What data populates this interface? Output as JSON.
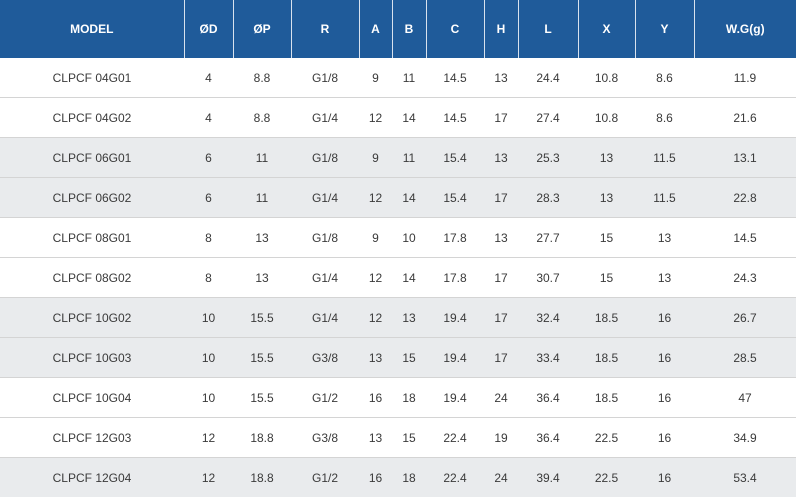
{
  "table": {
    "headers": [
      "MODEL",
      "ØD",
      "ØP",
      "R",
      "A",
      "B",
      "C",
      "H",
      "L",
      "X",
      "Y",
      "W.G(g)"
    ],
    "rows": [
      [
        "CLPCF 04G01",
        "4",
        "8.8",
        "G1/8",
        "9",
        "11",
        "14.5",
        "13",
        "24.4",
        "10.8",
        "8.6",
        "11.9"
      ],
      [
        "CLPCF 04G02",
        "4",
        "8.8",
        "G1/4",
        "12",
        "14",
        "14.5",
        "17",
        "27.4",
        "10.8",
        "8.6",
        "21.6"
      ],
      [
        "CLPCF 06G01",
        "6",
        "11",
        "G1/8",
        "9",
        "11",
        "15.4",
        "13",
        "25.3",
        "13",
        "11.5",
        "13.1"
      ],
      [
        "CLPCF 06G02",
        "6",
        "11",
        "G1/4",
        "12",
        "14",
        "15.4",
        "17",
        "28.3",
        "13",
        "11.5",
        "22.8"
      ],
      [
        "CLPCF 08G01",
        "8",
        "13",
        "G1/8",
        "9",
        "10",
        "17.8",
        "13",
        "27.7",
        "15",
        "13",
        "14.5"
      ],
      [
        "CLPCF 08G02",
        "8",
        "13",
        "G1/4",
        "12",
        "14",
        "17.8",
        "17",
        "30.7",
        "15",
        "13",
        "24.3"
      ],
      [
        "CLPCF 10G02",
        "10",
        "15.5",
        "G1/4",
        "12",
        "13",
        "19.4",
        "17",
        "32.4",
        "18.5",
        "16",
        "26.7"
      ],
      [
        "CLPCF 10G03",
        "10",
        "15.5",
        "G3/8",
        "13",
        "15",
        "19.4",
        "17",
        "33.4",
        "18.5",
        "16",
        "28.5"
      ],
      [
        "CLPCF 10G04",
        "10",
        "15.5",
        "G1/2",
        "16",
        "18",
        "19.4",
        "24",
        "36.4",
        "18.5",
        "16",
        "47"
      ],
      [
        "CLPCF 12G03",
        "12",
        "18.8",
        "G3/8",
        "13",
        "15",
        "22.4",
        "19",
        "36.4",
        "22.5",
        "16",
        "34.9"
      ],
      [
        "CLPCF 12G04",
        "12",
        "18.8",
        "G1/2",
        "16",
        "18",
        "22.4",
        "24",
        "39.4",
        "22.5",
        "16",
        "53.4"
      ]
    ]
  },
  "colors": {
    "header_bg": "#1f5b9a",
    "header_text": "#ffffff",
    "row_alt_bg": "#e9ebed",
    "row_bg": "#ffffff"
  }
}
